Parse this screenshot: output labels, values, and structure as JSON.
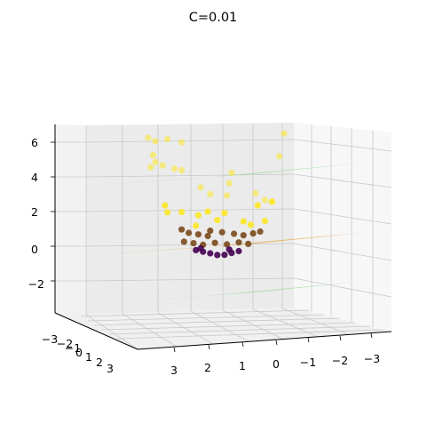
{
  "chart_data": {
    "type": "scatter3d",
    "title": "C=0.01",
    "xlabel": "",
    "ylabel": "",
    "zlabel": "",
    "grid": true,
    "legend": "none",
    "axes": {
      "z_ticks": [
        "6",
        "4",
        "2",
        "0",
        "−2"
      ],
      "front_ticks": [
        "3",
        "2",
        "1",
        "0",
        "−1",
        "−2",
        "−3"
      ],
      "side_ticks": [
        "−3",
        "−2",
        "−1",
        "0",
        "1",
        "2",
        "3"
      ]
    },
    "planes": [
      {
        "name": "upper-margin",
        "z": 4,
        "color": "#98d89a"
      },
      {
        "name": "decision-surface",
        "z": 0,
        "color": "#e8a94a"
      },
      {
        "name": "lower-margin",
        "z": -2.8,
        "color": "#98d89a"
      }
    ],
    "colors": {
      "high": "#fde725",
      "mid": "#7a4a1c",
      "low": "#440154"
    },
    "points": [
      {
        "u": 3.0,
        "z": 6.3,
        "c": "high"
      },
      {
        "u": 2.7,
        "z": 6.1,
        "c": "high"
      },
      {
        "u": 2.2,
        "z": 6.2,
        "c": "high"
      },
      {
        "u": 1.6,
        "z": 6.0,
        "c": "high"
      },
      {
        "u": -2.7,
        "z": 6.4,
        "c": "high"
      },
      {
        "u": -2.5,
        "z": 5.1,
        "c": "high"
      },
      {
        "u": 2.8,
        "z": 5.3,
        "c": "high"
      },
      {
        "u": 2.7,
        "z": 4.9,
        "c": "high"
      },
      {
        "u": 2.9,
        "z": 4.6,
        "c": "high"
      },
      {
        "u": 2.4,
        "z": 4.7,
        "c": "high"
      },
      {
        "u": 1.9,
        "z": 4.5,
        "c": "high"
      },
      {
        "u": 1.6,
        "z": 4.4,
        "c": "high"
      },
      {
        "u": -0.5,
        "z": 4.2,
        "c": "high"
      },
      {
        "u": -0.4,
        "z": 3.6,
        "c": "high"
      },
      {
        "u": 0.8,
        "z": 3.4,
        "c": "high"
      },
      {
        "u": 0.4,
        "z": 3.0,
        "c": "high"
      },
      {
        "u": -0.3,
        "z": 2.9,
        "c": "high"
      },
      {
        "u": -1.5,
        "z": 3.0,
        "c": "high"
      },
      {
        "u": -1.9,
        "z": 2.6,
        "c": "high"
      },
      {
        "u": -2.2,
        "z": 2.5,
        "c": "high"
      },
      {
        "u": -1.6,
        "z": 2.3,
        "c": "high"
      },
      {
        "u": 2.3,
        "z": 2.4,
        "c": "high"
      },
      {
        "u": 2.2,
        "z": 2.0,
        "c": "high"
      },
      {
        "u": 1.6,
        "z": 2.0,
        "c": "high"
      },
      {
        "u": 0.9,
        "z": 1.8,
        "c": "high"
      },
      {
        "u": 0.5,
        "z": 2.0,
        "c": "high"
      },
      {
        "u": -0.2,
        "z": 1.9,
        "c": "high"
      },
      {
        "u": 0.1,
        "z": 1.5,
        "c": "high"
      },
      {
        "u": -1.0,
        "z": 1.4,
        "c": "high"
      },
      {
        "u": -1.3,
        "z": 1.2,
        "c": "high"
      },
      {
        "u": -1.9,
        "z": 1.4,
        "c": "high"
      },
      {
        "u": 1.0,
        "z": 1.2,
        "c": "high"
      },
      {
        "u": 1.6,
        "z": 1.0,
        "c": "mid"
      },
      {
        "u": 1.3,
        "z": 0.8,
        "c": "mid"
      },
      {
        "u": 0.9,
        "z": 0.7,
        "c": "mid"
      },
      {
        "u": 0.5,
        "z": 0.6,
        "c": "mid"
      },
      {
        "u": -0.1,
        "z": 0.8,
        "c": "mid"
      },
      {
        "u": -0.6,
        "z": 0.7,
        "c": "mid"
      },
      {
        "u": -1.0,
        "z": 0.6,
        "c": "mid"
      },
      {
        "u": -1.4,
        "z": 0.7,
        "c": "mid"
      },
      {
        "u": -1.7,
        "z": 0.8,
        "c": "mid"
      },
      {
        "u": 1.5,
        "z": 0.3,
        "c": "mid"
      },
      {
        "u": 1.1,
        "z": 0.2,
        "c": "mid"
      },
      {
        "u": 0.7,
        "z": 0.1,
        "c": "mid"
      },
      {
        "u": 0.2,
        "z": 0.2,
        "c": "mid"
      },
      {
        "u": -0.3,
        "z": 0.1,
        "c": "mid"
      },
      {
        "u": -0.8,
        "z": 0.2,
        "c": "mid"
      },
      {
        "u": -1.2,
        "z": 0.1,
        "c": "mid"
      },
      {
        "u": 0.4,
        "z": 0.9,
        "c": "mid"
      },
      {
        "u": 1.0,
        "z": -0.2,
        "c": "low"
      },
      {
        "u": 0.7,
        "z": -0.3,
        "c": "low"
      },
      {
        "u": 0.4,
        "z": -0.4,
        "c": "low"
      },
      {
        "u": 0.1,
        "z": -0.5,
        "c": "low"
      },
      {
        "u": -0.2,
        "z": -0.5,
        "c": "low"
      },
      {
        "u": -0.5,
        "z": -0.4,
        "c": "low"
      },
      {
        "u": -0.8,
        "z": -0.3,
        "c": "low"
      },
      {
        "u": 0.8,
        "z": -0.1,
        "c": "low"
      },
      {
        "u": -0.4,
        "z": -0.2,
        "c": "low"
      }
    ]
  }
}
